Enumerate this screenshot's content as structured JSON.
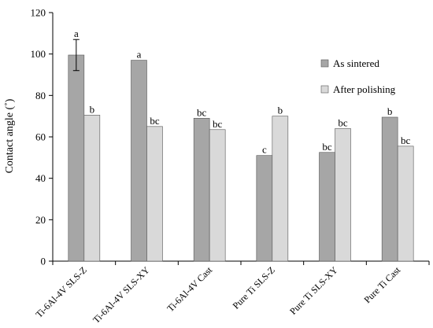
{
  "chart_data": {
    "type": "bar",
    "title": "",
    "xlabel": "",
    "ylabel": "Contact angle (˚)",
    "ylim": [
      0,
      120
    ],
    "yticks": [
      0,
      20,
      40,
      60,
      80,
      100,
      120
    ],
    "grid": false,
    "legend_position": "right",
    "categories": [
      "Ti-6Al-4V SLS-Z",
      "Ti-6Al-4V SLS-XY",
      "Ti-6Al-4V Cast",
      "Pure Ti SLS-Z",
      "Pure Ti SLS-XY",
      "Pure Ti Cast"
    ],
    "series": [
      {
        "name": "As sintered",
        "color": "#a6a6a6",
        "values": [
          99.5,
          97,
          69,
          51,
          52.5,
          69.5
        ],
        "labels": [
          "a",
          "a",
          "bc",
          "c",
          "bc",
          "b"
        ],
        "error": [
          7.5,
          0,
          0,
          0,
          0,
          0
        ]
      },
      {
        "name": "After polishing",
        "color": "#d9d9d9",
        "values": [
          70.5,
          65,
          63.5,
          70,
          64,
          55.5
        ],
        "labels": [
          "b",
          "bc",
          "bc",
          "b",
          "bc",
          "bc"
        ],
        "error": [
          0,
          0,
          0,
          0,
          0,
          0
        ]
      }
    ]
  }
}
